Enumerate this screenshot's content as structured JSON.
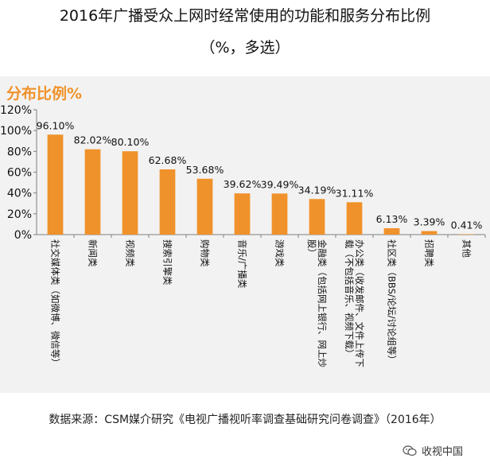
{
  "page": {
    "title_line1": "2016年广播受众上网时经常使用的功能和服务分布比例",
    "title_line2": "（%，多选）",
    "source": "数据来源：CSM媒介研究《电视广播视听率调查基础研究问卷调查》（2016年）",
    "brand": "收视中国"
  },
  "chart_data": {
    "type": "bar",
    "title": "分布比例%",
    "xlabel": "",
    "ylabel": "",
    "ylim": [
      0,
      120
    ],
    "yticks": [
      "0%",
      "20%",
      "40%",
      "60%",
      "80%",
      "100%",
      "120%"
    ],
    "grid": false,
    "categories": [
      "社交媒体类（如微博、微信等）",
      "新闻类",
      "视频类",
      "搜索引擎类",
      "购物类",
      "音乐/广播类",
      "游戏类",
      "金融类（包括网上银行、网上炒股）",
      "办公类（收发邮件、文件上传下载（不包括音乐、视频下载）",
      "社区类（BBS/论坛/讨论组等）",
      "招聘类",
      "其他"
    ],
    "values": [
      96.1,
      82.02,
      80.1,
      62.68,
      53.68,
      39.62,
      39.49,
      34.19,
      31.11,
      6.13,
      3.39,
      0.41
    ],
    "value_labels": [
      "96.10%",
      "82.02%",
      "80.10%",
      "62.68%",
      "53.68%",
      "39.62%",
      "39.49%",
      "34.19%",
      "31.11%",
      "6.13%",
      "3.39%",
      "0.41%"
    ],
    "category_lines": [
      [
        "社交媒体类（如微博、微信等）"
      ],
      [
        "新闻类"
      ],
      [
        "视频类"
      ],
      [
        "搜索引擎类"
      ],
      [
        "购物类"
      ],
      [
        "音乐/广播类"
      ],
      [
        "游戏类"
      ],
      [
        "金融类（包括网上银行、网上炒",
        "股）"
      ],
      [
        "办公类（收发邮件、文件上传下",
        "载（不包括音乐、视频下载）"
      ],
      [
        "社区类（BBS/论坛/讨论组等）"
      ],
      [
        "招聘类"
      ],
      [
        "其他"
      ]
    ],
    "colors": {
      "bar": "#f0922b",
      "axis": "#7f7f7f",
      "heading": "#f0922b"
    }
  }
}
